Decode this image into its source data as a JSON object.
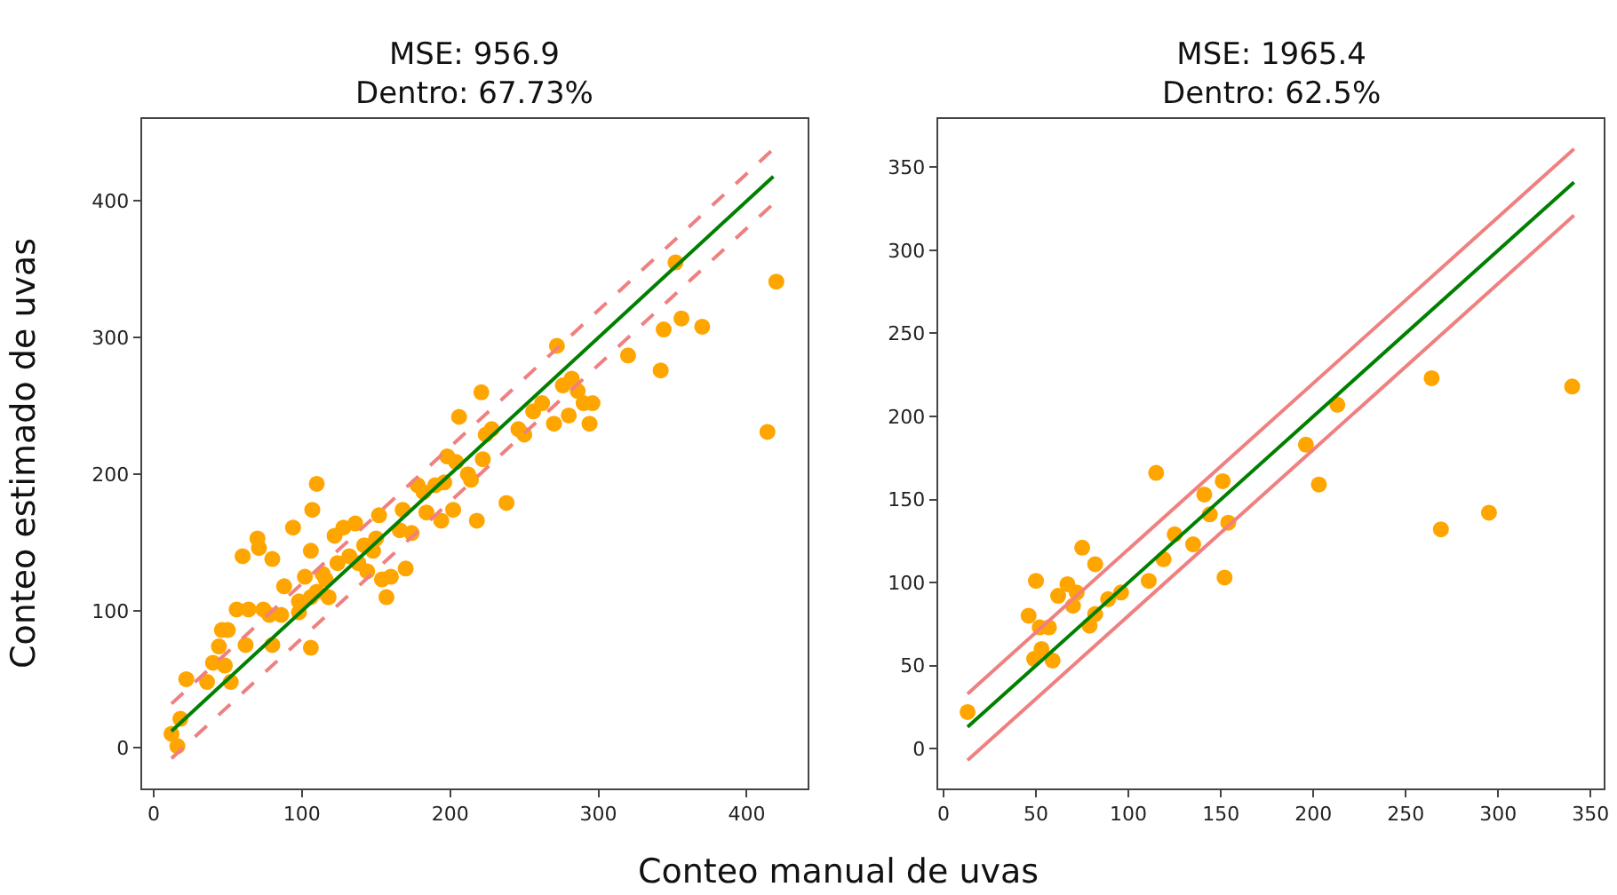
{
  "chart_data": [
    {
      "type": "scatter",
      "title": "MSE: 956.9\nDentro: 67.73%",
      "xlabel": "Conteo manual de uvas",
      "ylabel": "Conteo estimado de uvas",
      "xlim": [
        -8,
        441
      ],
      "ylim": [
        -30,
        460
      ],
      "xticks": [
        0,
        100,
        200,
        300,
        400
      ],
      "yticks": [
        0,
        100,
        200,
        300,
        400
      ],
      "series": [
        {
          "marker": "circle",
          "color": "#ffa500",
          "x": [
            12,
            16,
            18,
            22,
            36,
            40,
            44,
            46,
            50,
            52,
            48,
            60,
            62,
            56,
            64,
            70,
            71,
            74,
            80,
            80,
            78,
            86,
            94,
            88,
            98,
            106,
            106,
            107,
            110,
            102,
            110,
            114,
            118,
            122,
            128,
            132,
            136,
            142,
            144,
            150,
            152,
            154,
            157,
            160,
            168,
            170,
            174,
            178,
            184,
            190,
            194,
            198,
            202,
            204,
            206,
            212,
            218,
            221,
            222,
            224,
            228,
            238,
            246,
            250,
            256,
            262,
            270,
            272,
            276,
            280,
            282,
            286,
            290,
            294,
            296,
            320,
            342,
            344,
            352,
            356,
            370,
            414,
            420,
            98,
            106,
            116,
            124,
            138,
            148,
            166,
            182,
            196,
            214
          ],
          "values": [
            10,
            1,
            21,
            50,
            48,
            62,
            74,
            86,
            86,
            48,
            60,
            140,
            75,
            101,
            101,
            153,
            146,
            101,
            138,
            75,
            97,
            97,
            161,
            118,
            107,
            73,
            144,
            174,
            193,
            125,
            114,
            127,
            110,
            155,
            161,
            140,
            164,
            148,
            129,
            153,
            170,
            123,
            110,
            125,
            174,
            131,
            157,
            192,
            172,
            192,
            166,
            213,
            174,
            209,
            242,
            200,
            166,
            260,
            211,
            229,
            233,
            179,
            233,
            229,
            246,
            252,
            237,
            294,
            265,
            243,
            270,
            261,
            252,
            237,
            252,
            287,
            276,
            306,
            355,
            314,
            308,
            231,
            341,
            99,
            110,
            123,
            135,
            135,
            144,
            159,
            187,
            194,
            196
          ]
        },
        {
          "type": "line",
          "marker": "none",
          "line_style": "solid",
          "color": "#008000",
          "x": [
            12,
            418
          ],
          "values": [
            12,
            418
          ]
        },
        {
          "type": "line",
          "marker": "none",
          "line_style": "dashed",
          "color": "#f08080",
          "x": [
            12,
            418
          ],
          "values": [
            32,
            438
          ]
        },
        {
          "type": "line",
          "marker": "none",
          "line_style": "dashed",
          "color": "#f08080",
          "x": [
            12,
            418
          ],
          "values": [
            -8,
            398
          ]
        }
      ]
    },
    {
      "type": "scatter",
      "title": "MSE: 1965.4\nDentro: 62.5%",
      "xlim": [
        -3,
        357
      ],
      "ylim": [
        -24,
        379
      ],
      "xticks": [
        0,
        50,
        100,
        150,
        200,
        250,
        300,
        350
      ],
      "yticks": [
        0,
        50,
        100,
        150,
        200,
        250,
        300,
        350
      ],
      "series": [
        {
          "marker": "circle",
          "color": "#ffa500",
          "x": [
            13,
            46,
            50,
            49,
            53,
            52,
            57,
            59,
            62,
            67,
            70,
            72,
            75,
            79,
            82,
            82,
            89,
            96,
            111,
            115,
            119,
            125,
            135,
            141,
            144,
            151,
            152,
            154,
            196,
            203,
            213,
            264,
            269,
            295,
            340
          ],
          "values": [
            22,
            80,
            101,
            54,
            60,
            73,
            73,
            53,
            92,
            99,
            86,
            94,
            121,
            74,
            111,
            81,
            90,
            94,
            101,
            166,
            114,
            129,
            123,
            153,
            141,
            161,
            103,
            136,
            183,
            159,
            207,
            223,
            132,
            142,
            218
          ]
        },
        {
          "type": "line",
          "marker": "none",
          "line_style": "solid",
          "color": "#008000",
          "x": [
            13,
            341
          ],
          "values": [
            13,
            341
          ]
        },
        {
          "type": "line",
          "marker": "none",
          "line_style": "solid",
          "color": "#f08080",
          "x": [
            13,
            341
          ],
          "values": [
            33,
            361
          ]
        },
        {
          "type": "line",
          "marker": "none",
          "line_style": "solid",
          "color": "#f08080",
          "x": [
            13,
            341
          ],
          "values": [
            -7,
            321
          ]
        }
      ]
    }
  ]
}
